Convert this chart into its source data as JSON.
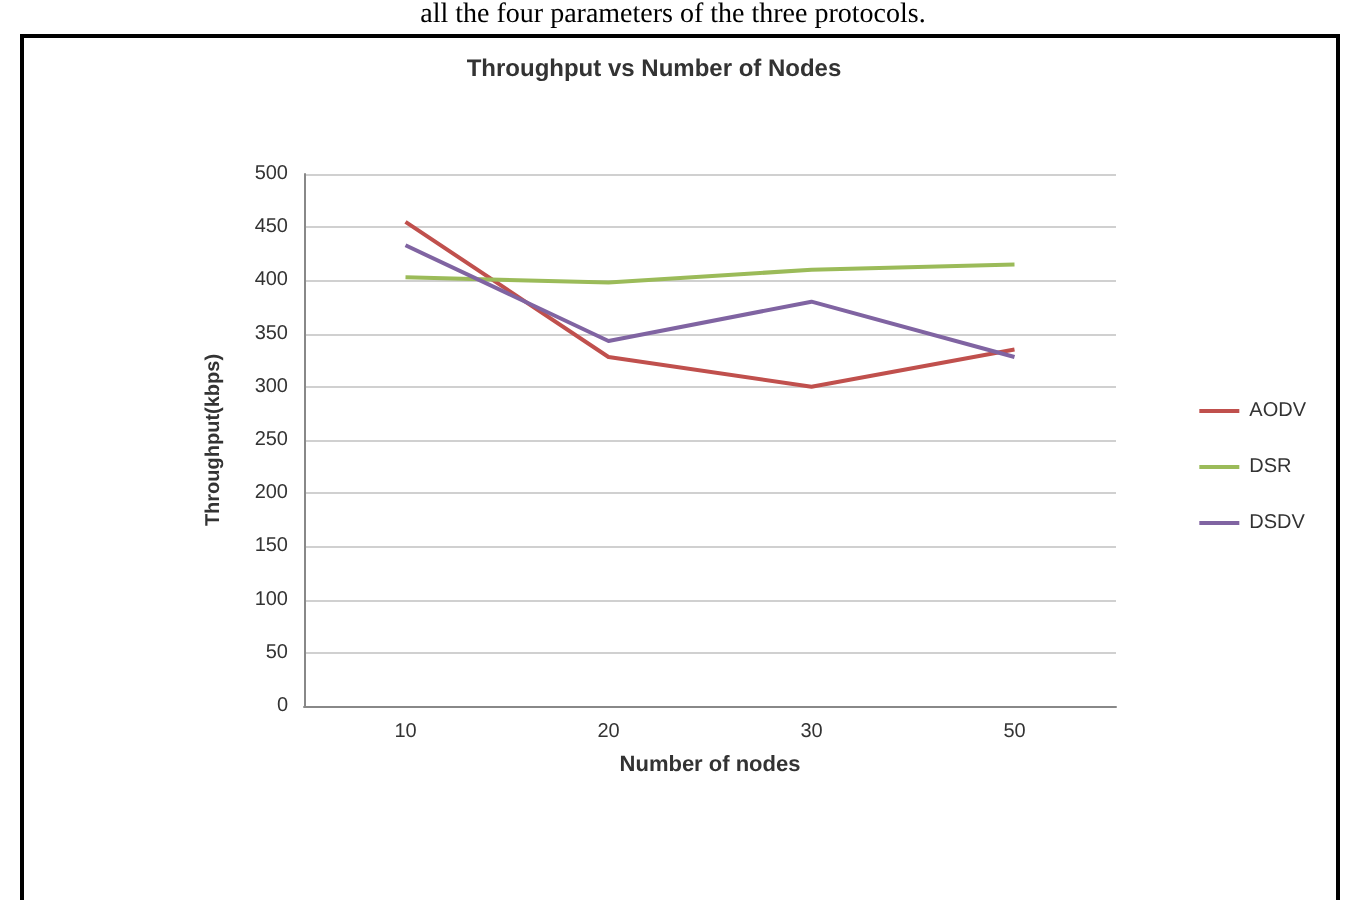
{
  "chart_data": {
    "type": "line",
    "title": "Throughput vs Number of Nodes",
    "xlabel": "Number of nodes",
    "ylabel": "Throughput(kbps)",
    "annotations": [
      "all the four parameters of the three protocols."
    ],
    "categories": [
      "10",
      "20",
      "30",
      "50"
    ],
    "series": [
      {
        "name": "AODV",
        "color": "#c0504d",
        "values": [
          455,
          328,
          300,
          335
        ]
      },
      {
        "name": "DSR",
        "color": "#9bbb59",
        "values": [
          403,
          398,
          410,
          415
        ]
      },
      {
        "name": "DSDV",
        "color": "#8064a2",
        "values": [
          433,
          343,
          380,
          328
        ]
      }
    ],
    "ylim": [
      0,
      500
    ],
    "yticks": [
      0,
      50,
      100,
      150,
      200,
      250,
      300,
      350,
      400,
      450,
      500
    ],
    "grid": "y",
    "legend": "right",
    "marker": "none",
    "line_style": "solid"
  }
}
